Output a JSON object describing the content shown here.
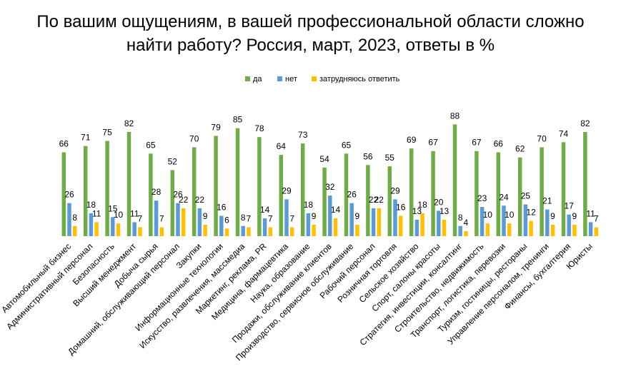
{
  "chart_data": {
    "type": "bar",
    "title_lines": [
      "По вашим ощущениям, в вашей профессиональной области сложно",
      "найти работу? Россия, март, 2023, ответы в %"
    ],
    "legend_position": "top",
    "grid": false,
    "ylim": [
      0,
      100
    ],
    "categories": [
      "Автомобильный бизнес",
      "Административный персонал",
      "Безопасность",
      "Высший менеджмент",
      "Добыча сырья",
      "Домашний, обслуживающий персонал",
      "Закупки",
      "Информационные технологии",
      "Искусство, развлечения, массмедиа",
      "Маркетинг, реклама, PR",
      "Медицина, фармацевтика",
      "Наука, образование",
      "Продажи, обслуживание клиентов",
      "Производство, сервисное обслуживание",
      "Рабочий персонал",
      "Розничная торговля",
      "Сельское хозяйство",
      "Спорт, салоны красоты",
      "Стратегия, инвестиции, консалтинг",
      "Строительство, недвижимость",
      "Транспорт, логистика, перевозки",
      "Туризм, гостиницы, рестораны",
      "Управление персоналом, тренинги",
      "Финансы, бухгалтерия",
      "Юристы"
    ],
    "series": [
      {
        "name": "да",
        "color": "#70AD47",
        "values": [
          66,
          71,
          75,
          82,
          65,
          52,
          70,
          79,
          85,
          78,
          64,
          73,
          54,
          65,
          56,
          55,
          69,
          67,
          88,
          67,
          66,
          62,
          70,
          74,
          82
        ]
      },
      {
        "name": "нет",
        "color": "#5B9BD5",
        "values": [
          26,
          18,
          15,
          11,
          28,
          26,
          22,
          16,
          8,
          14,
          29,
          18,
          32,
          26,
          22,
          29,
          13,
          20,
          8,
          23,
          24,
          25,
          21,
          17,
          11
        ]
      },
      {
        "name": "затрудняюсь ответить",
        "color": "#FFC000",
        "values": [
          8,
          11,
          10,
          7,
          7,
          22,
          9,
          6,
          7,
          7,
          7,
          9,
          14,
          9,
          22,
          16,
          18,
          13,
          4,
          10,
          10,
          12,
          9,
          9,
          7
        ]
      }
    ]
  }
}
